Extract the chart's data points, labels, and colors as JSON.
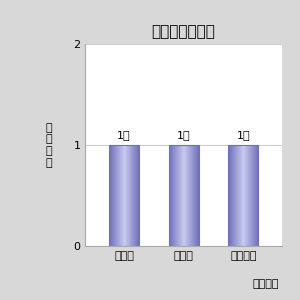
{
  "title": "ジャナル指の向",
  "categories": [
    "着な加",
    "化なし",
    "徐々に少"
  ],
  "values": [
    1,
    1,
    1
  ],
  "bar_labels": [
    "1人",
    "1人",
    "1人"
  ],
  "ylabel": "延べ人数",
  "xlabel_note": "来年の予",
  "ylim": [
    0,
    2
  ],
  "yticks": [
    0,
    1,
    2
  ],
  "bar_color_center": "#c8caee",
  "bar_color_edge": "#7070b8",
  "bg_outer": "#d8d8d8",
  "bg_plot": "#ffffff",
  "grid_color": "#cccccc",
  "title_fontsize": 11,
  "label_fontsize": 8,
  "tick_fontsize": 8
}
